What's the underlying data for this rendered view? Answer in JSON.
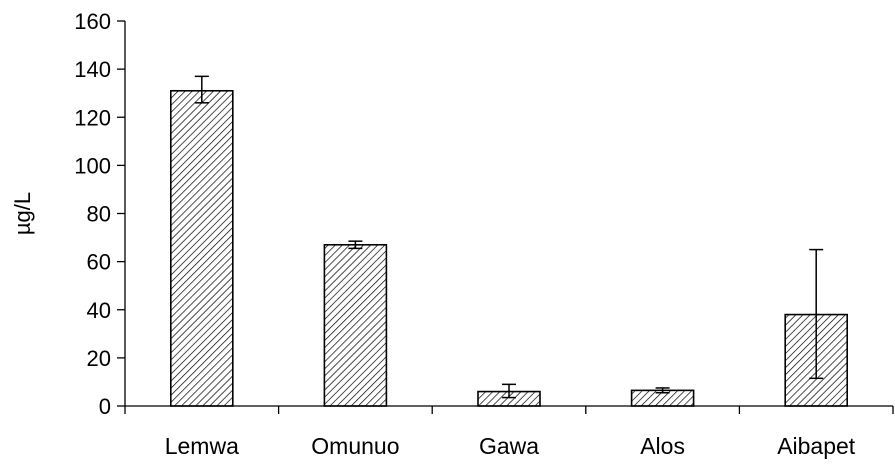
{
  "chart_data": {
    "type": "bar",
    "title": "",
    "xlabel": "",
    "ylabel": "µg/L",
    "ylim": [
      0,
      160
    ],
    "yticks": [
      0,
      20,
      40,
      60,
      80,
      100,
      120,
      140,
      160
    ],
    "categories": [
      "Lemwa",
      "Omunuo",
      "Gawa",
      "Alos",
      "Aibapet"
    ],
    "values": [
      131,
      67,
      6,
      6.5,
      38
    ],
    "error_low": [
      126,
      65.5,
      3.5,
      5.5,
      11.5
    ],
    "error_high": [
      137,
      68.5,
      9,
      7.5,
      65
    ],
    "grid": false,
    "legend": "none",
    "bar_fill": "diagonal-hatch",
    "colors": {
      "bar_stroke": "#000000",
      "hatch": "#000000",
      "background": "#ffffff"
    }
  }
}
